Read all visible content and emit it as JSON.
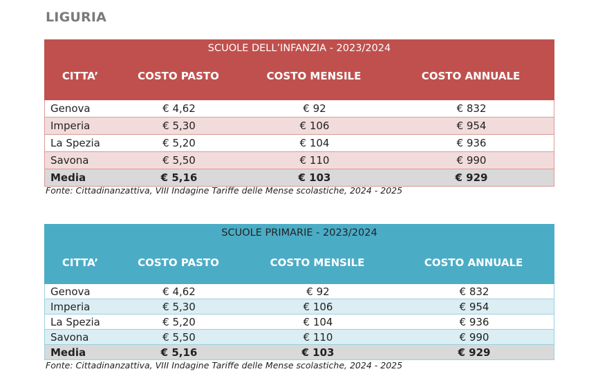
{
  "page": {
    "title": "LIGURIA"
  },
  "tables": [
    {
      "title": "SCUOLE DELL’INFANZIA - 2023/2024",
      "headers": [
        "CITTA’",
        "COSTO PASTO",
        "COSTO MENSILE",
        "COSTO ANNUALE"
      ],
      "rows": [
        [
          "Genova",
          "€ 4,62",
          "€ 92",
          "€ 832"
        ],
        [
          "Imperia",
          "€ 5,30",
          "€ 106",
          "€ 954"
        ],
        [
          "La Spezia",
          "€ 5,20",
          "€ 104",
          "€ 936"
        ],
        [
          "Savona",
          "€ 5,50",
          "€ 110",
          "€ 990"
        ]
      ],
      "average": [
        "Media",
        "€ 5,16",
        "€ 103",
        "€ 929"
      ],
      "accent_color": "#c0504d",
      "source": "Fonte: Cittadinanzattiva, VIII Indagine Tariffe delle Mense scolastiche, 2024 - 2025"
    },
    {
      "title": "SCUOLE PRIMARIE - 2023/2024",
      "headers": [
        "CITTA’",
        "COSTO PASTO",
        "COSTO MENSILE",
        "COSTO ANNUALE"
      ],
      "rows": [
        [
          "Genova",
          "€ 4,62",
          "€ 92",
          "€ 832"
        ],
        [
          "Imperia",
          "€ 5,30",
          "€ 106",
          "€ 954"
        ],
        [
          "La Spezia",
          "€ 5,20",
          "€ 104",
          "€ 936"
        ],
        [
          "Savona",
          "€ 5,50",
          "€ 110",
          "€ 990"
        ]
      ],
      "average": [
        "Media",
        "€ 5,16",
        "€ 103",
        "€ 929"
      ],
      "accent_color": "#4bacc6",
      "source": "Fonte: Cittadinanzattiva, VIII Indagine Tariffe delle Mense scolastiche, 2024 - 2025"
    }
  ]
}
